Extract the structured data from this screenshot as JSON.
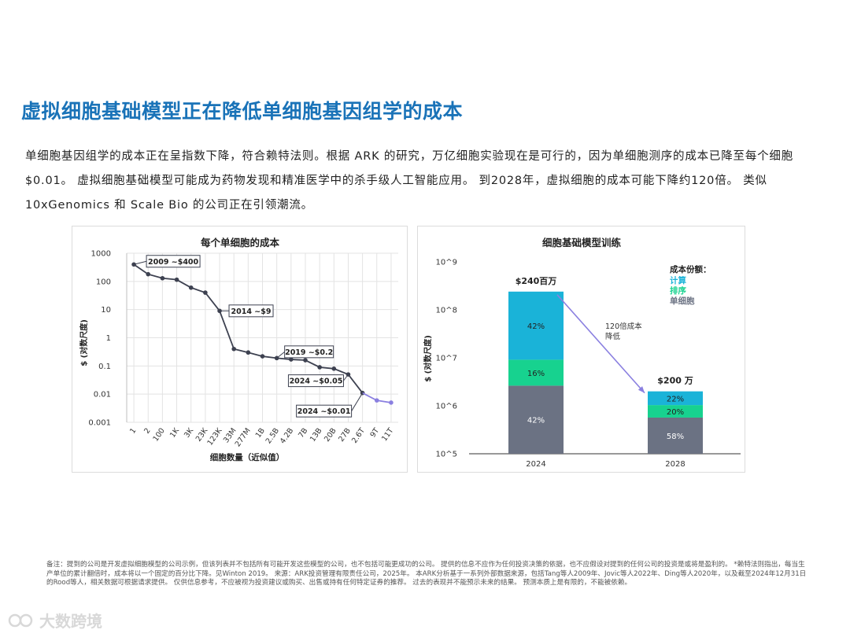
{
  "header": {
    "title": "虚拟细胞基础模型正在降低单细胞基因组学的成本",
    "intro": "单细胞基因组学的成本正在呈指数下降，符合赖特法则。根据 ARK 的研究，万亿细胞实验现在是可行的，因为单细胞测序的成本已降至每个细胞$0.01。 虚拟细胞基础模型可能成为药物发现和精准医学中的杀手级人工智能应用。 到2028年，虚拟细胞的成本可能下降约120倍。 类似10xGenomics 和 Scale Bio 的公司正在引领潮流。"
  },
  "footnote": "备注：提到的公司是开发虚拟细胞模型的公司示例，但该列表并不包括所有可能开发这些模型的公司，也不包括可能更成功的公司。 提供的信息不应作为任何投资决策的依据，也不应假设对提到的任何公司的投资是或将是盈利的。 *赖特法则指出，每当生产单位的累计翻倍时，成本将以一个固定的百分比下降。见Winton 2019。 来源：ARK投资管理有限责任公司，2025年。 本ARK分析基于一系列外部数据来源，包括Tang等人2009年、Jovic等人2022年、Ding等人2020年，以及截至2024年12月31日的Rood等人，相关数据可根据请求提供。 仅供信息参考，不应被视为投资建议或购买、出售或持有任何特定证券的推荐。 过去的表现并不能预示未来的结果。 预测本质上是有限的，不能被依赖。",
  "watermark": "大数跨境",
  "colors": {
    "title": "#1a73b8",
    "line": "#3d4150",
    "forecast_line": "#8a7fe0",
    "compute": "#1ab3d8",
    "sequencing": "#17d28f",
    "single_cell": "#6b7283",
    "arrow": "#8a7fe0"
  },
  "chart_data": [
    {
      "type": "line",
      "title": "每个单细胞的成本",
      "xlabel": "细胞数量（近似值）",
      "ylabel": "$ (对数尺度)",
      "yscale": "log",
      "ylim": [
        0.001,
        1000
      ],
      "yticks": [
        "1000",
        "100",
        "10",
        "1",
        "0.1",
        "0.01",
        "0.001"
      ],
      "categories": [
        "1",
        "2",
        "100",
        "1K",
        "3K",
        "23K",
        "123K",
        "33M",
        "277M",
        "1B",
        "2.5B",
        "4.2B",
        "7B",
        "13B",
        "20B",
        "27B",
        "2.6T",
        "9T",
        "11T"
      ],
      "series": [
        {
          "values": [
            400,
            180,
            130,
            115,
            60,
            40,
            9,
            0.4,
            0.3,
            0.22,
            0.19,
            0.17,
            0.16,
            0.09,
            0.08,
            0.05,
            0.011,
            null,
            null
          ]
        },
        {
          "values": [
            null,
            null,
            null,
            null,
            null,
            null,
            null,
            null,
            null,
            null,
            null,
            null,
            null,
            null,
            null,
            null,
            0.011,
            0.006,
            0.005
          ]
        }
      ],
      "annotations": [
        {
          "text": "2009 ~$400",
          "index": 0
        },
        {
          "text": "2014 ~$9",
          "index": 6
        },
        {
          "text": "2019 ~$0.2",
          "index": 10
        },
        {
          "text": "2024 ~$0.05",
          "index": 15
        },
        {
          "text": "2024 ~$0.01",
          "index": 16
        }
      ],
      "grid": true
    },
    {
      "type": "bar",
      "stacked": true,
      "title": "细胞基础模型训练",
      "ylabel": "$ (对数尺度)",
      "yscale": "log",
      "ylim": [
        100000,
        1000000000
      ],
      "yticks": [
        "10^9",
        "10^8",
        "10^7",
        "10^6",
        "10^5"
      ],
      "categories": [
        "2024",
        "2028"
      ],
      "totals": [
        240000000,
        2000000
      ],
      "total_labels": [
        "$240百万",
        "$200 万"
      ],
      "series": [
        {
          "name": "单细胞",
          "shares": [
            0.42,
            0.58
          ],
          "labels": [
            "42%",
            "58%"
          ]
        },
        {
          "name": "排序",
          "shares": [
            0.16,
            0.2
          ],
          "labels": [
            "16%",
            "20%"
          ]
        },
        {
          "name": "计算",
          "shares": [
            0.42,
            0.22
          ],
          "labels": [
            "42%",
            "22%"
          ]
        }
      ],
      "legend_title": "成本份额：",
      "legend_position": "top-right",
      "arrow_label": [
        "120倍成本",
        "降低"
      ]
    }
  ]
}
